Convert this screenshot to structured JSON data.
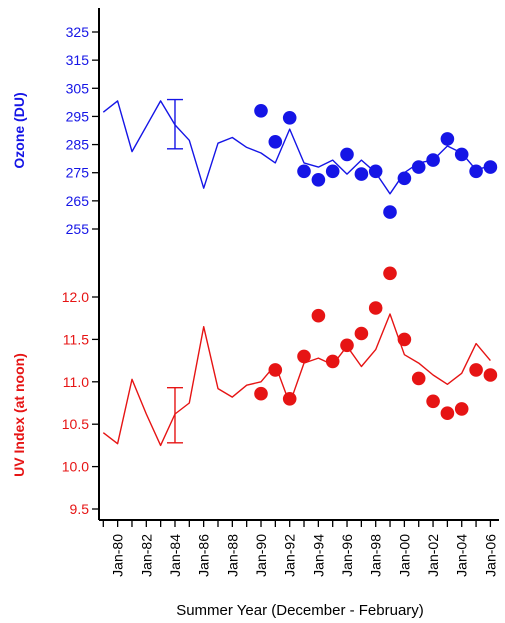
{
  "colors": {
    "ozone": "#1515e6",
    "uv": "#e61414",
    "axis": "#000000"
  },
  "chart_data": {
    "type": "line",
    "xlabel": "Summer Year (December - February)",
    "xlim": [
      1978.7,
      2006.6
    ],
    "x_ticks": [
      {
        "x": 1980,
        "label": "Jan-80"
      },
      {
        "x": 1982,
        "label": "Jan-82"
      },
      {
        "x": 1984,
        "label": "Jan-84"
      },
      {
        "x": 1986,
        "label": "Jan-86"
      },
      {
        "x": 1988,
        "label": "Jan-88"
      },
      {
        "x": 1990,
        "label": "Jan-90"
      },
      {
        "x": 1992,
        "label": "Jan-92"
      },
      {
        "x": 1994,
        "label": "Jan-94"
      },
      {
        "x": 1996,
        "label": "Jan-96"
      },
      {
        "x": 1998,
        "label": "Jan-98"
      },
      {
        "x": 2000,
        "label": "Jan-00"
      },
      {
        "x": 2002,
        "label": "Jan-02"
      },
      {
        "x": 2004,
        "label": "Jan-04"
      },
      {
        "x": 2006,
        "label": "Jan-06"
      }
    ],
    "panels": [
      {
        "id": "ozone",
        "ylabel": "Ozone (DU)",
        "ylim": [
          255,
          325
        ],
        "yticks": [
          {
            "v": 255,
            "label": "255"
          },
          {
            "v": 265,
            "label": "265"
          },
          {
            "v": 275,
            "label": "275"
          },
          {
            "v": 285,
            "label": "285"
          },
          {
            "v": 295,
            "label": "295"
          },
          {
            "v": 305,
            "label": "305"
          },
          {
            "v": 315,
            "label": "315"
          },
          {
            "v": 325,
            "label": "325"
          }
        ],
        "line": [
          [
            1979,
            296.5
          ],
          [
            1980,
            300.5
          ],
          [
            1981,
            282.5
          ],
          [
            1982,
            291.5
          ],
          [
            1983,
            300.5
          ],
          [
            1984,
            292
          ],
          [
            1985,
            286.5
          ],
          [
            1986,
            269.5
          ],
          [
            1987,
            285.5
          ],
          [
            1988,
            287.5
          ],
          [
            1989,
            284
          ],
          [
            1990,
            282
          ],
          [
            1991,
            278.5
          ],
          [
            1992,
            290.5
          ],
          [
            1993,
            278.5
          ],
          [
            1994,
            277
          ],
          [
            1995,
            279.5
          ],
          [
            1996,
            274.5
          ],
          [
            1997,
            279.5
          ],
          [
            1998,
            275
          ],
          [
            1999,
            267.5
          ],
          [
            2000,
            275
          ],
          [
            2001,
            278.5
          ],
          [
            2002,
            279.5
          ],
          [
            2003,
            284.5
          ],
          [
            2004,
            282
          ],
          [
            2005,
            276
          ],
          [
            2006,
            277.5
          ]
        ],
        "points": [
          [
            1990,
            297
          ],
          [
            1991,
            286
          ],
          [
            1992,
            294.5
          ],
          [
            1993,
            275.5
          ],
          [
            1994,
            272.5
          ],
          [
            1995,
            275.5
          ],
          [
            1996,
            281.5
          ],
          [
            1997,
            274.5
          ],
          [
            1998,
            275.5
          ],
          [
            1999,
            261
          ],
          [
            2000,
            273
          ],
          [
            2001,
            277
          ],
          [
            2002,
            279.5
          ],
          [
            2003,
            287
          ],
          [
            2004,
            281.5
          ],
          [
            2005,
            275.5
          ],
          [
            2006,
            277
          ]
        ],
        "errorbar": {
          "x": 1984,
          "low": 283.5,
          "high": 301
        }
      },
      {
        "id": "uv",
        "ylabel": "UV Index (at noon)",
        "ylim": [
          9.5,
          12.0
        ],
        "yticks": [
          {
            "v": 9.5,
            "label": "9.5"
          },
          {
            "v": 10.0,
            "label": "10.0"
          },
          {
            "v": 10.5,
            "label": "10.5"
          },
          {
            "v": 11.0,
            "label": "11.0"
          },
          {
            "v": 11.5,
            "label": "11.5"
          },
          {
            "v": 12.0,
            "label": "12.0"
          }
        ],
        "line": [
          [
            1979,
            10.4
          ],
          [
            1980,
            10.27
          ],
          [
            1981,
            11.03
          ],
          [
            1982,
            10.62
          ],
          [
            1983,
            10.25
          ],
          [
            1984,
            10.62
          ],
          [
            1985,
            10.75
          ],
          [
            1986,
            11.65
          ],
          [
            1987,
            10.92
          ],
          [
            1988,
            10.82
          ],
          [
            1989,
            10.96
          ],
          [
            1990,
            11.0
          ],
          [
            1991,
            11.2
          ],
          [
            1992,
            10.74
          ],
          [
            1993,
            11.22
          ],
          [
            1994,
            11.28
          ],
          [
            1995,
            11.2
          ],
          [
            1996,
            11.42
          ],
          [
            1997,
            11.18
          ],
          [
            1998,
            11.38
          ],
          [
            1999,
            11.8
          ],
          [
            2000,
            11.32
          ],
          [
            2001,
            11.22
          ],
          [
            2002,
            11.08
          ],
          [
            2003,
            10.97
          ],
          [
            2004,
            11.1
          ],
          [
            2005,
            11.45
          ],
          [
            2006,
            11.25
          ]
        ],
        "points": [
          [
            1990,
            10.86
          ],
          [
            1991,
            11.14
          ],
          [
            1992,
            10.8
          ],
          [
            1993,
            11.3
          ],
          [
            1994,
            11.78
          ],
          [
            1995,
            11.24
          ],
          [
            1996,
            11.43
          ],
          [
            1997,
            11.57
          ],
          [
            1998,
            11.87
          ],
          [
            1999,
            12.28
          ],
          [
            2000,
            11.5
          ],
          [
            2001,
            11.04
          ],
          [
            2002,
            10.77
          ],
          [
            2003,
            10.63
          ],
          [
            2004,
            10.68
          ],
          [
            2005,
            11.14
          ],
          [
            2006,
            11.08
          ]
        ],
        "errorbar": {
          "x": 1984,
          "low": 10.28,
          "high": 10.93
        }
      }
    ]
  }
}
